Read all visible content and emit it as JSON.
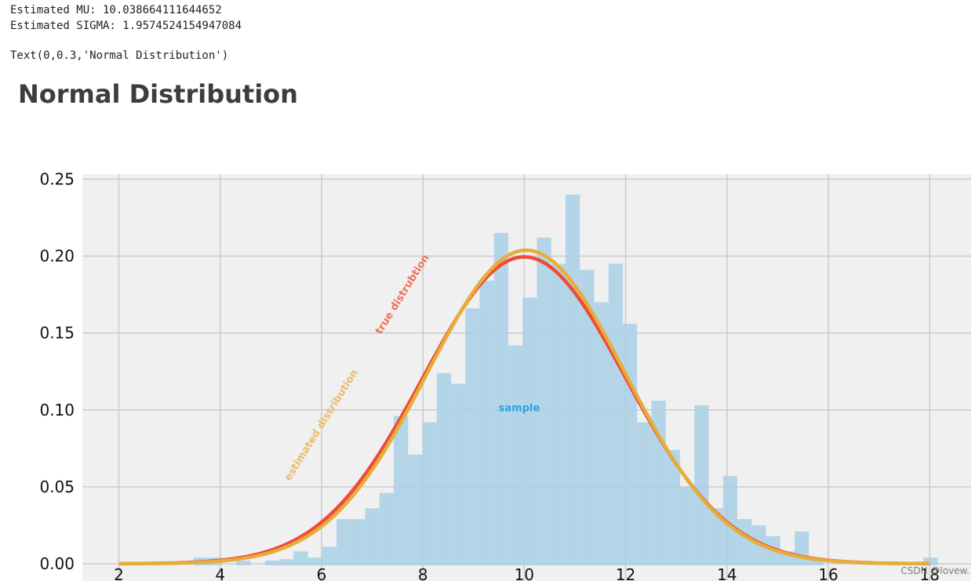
{
  "output": {
    "line1": "Estimated MU: 10.038664111644652",
    "line2": "Estimated SIGMA: 1.9574524154947084",
    "text_repr": "Text(0,0.3,'Normal Distribution')"
  },
  "watermark": "CSDN @lovew.",
  "colors": {
    "background": "#f0f0f0",
    "grid": "#cbcbcb",
    "hist": "#a9d0e6",
    "true_curve": "#f04a3a",
    "estimated_curve": "#e5ae38",
    "sample_label": "#30a2da",
    "true_label": "#ef6f5b",
    "estimated_label": "#e9bb6b"
  },
  "chart_data": {
    "type": "bar",
    "title": "Normal Distribution",
    "xlabel": "",
    "ylabel": "",
    "xlim": [
      2,
      18
    ],
    "ylim": [
      0,
      0.25
    ],
    "grid": true,
    "xticks": [
      "2",
      "4",
      "6",
      "8",
      "10",
      "12",
      "14",
      "16",
      "18"
    ],
    "yticks": [
      "0.00",
      "0.05",
      "0.10",
      "0.15",
      "0.20",
      "0.25"
    ],
    "histogram": {
      "name": "sample",
      "bin_start": 3.47,
      "bin_width": 0.2825,
      "densities": [
        0.004,
        0.004,
        0.0,
        0.002,
        0.0,
        0.002,
        0.003,
        0.008,
        0.004,
        0.011,
        0.029,
        0.029,
        0.036,
        0.046,
        0.096,
        0.071,
        0.092,
        0.124,
        0.117,
        0.166,
        0.184,
        0.215,
        0.142,
        0.173,
        0.212,
        0.195,
        0.24,
        0.191,
        0.17,
        0.195,
        0.156,
        0.092,
        0.106,
        0.074,
        0.05,
        0.103,
        0.036,
        0.057,
        0.029,
        0.025,
        0.018,
        0.008,
        0.021,
        0.004,
        0.0,
        0.0,
        0.0,
        0.0,
        0.0,
        0.0,
        0.0,
        0.004
      ]
    },
    "series": [
      {
        "name": "true distrubtion",
        "mu": 10.0,
        "sigma": 2.0
      },
      {
        "name": "estimated distribution",
        "mu": 10.038664111644652,
        "sigma": 1.9574524154947084
      }
    ],
    "annotations": [
      {
        "text": "sample",
        "x": 9.9,
        "y": 0.101
      },
      {
        "text": "true distrubtion",
        "x": 7.6,
        "y": 0.175
      },
      {
        "text": "estimated distribution",
        "x": 6.0,
        "y": 0.09
      }
    ]
  }
}
